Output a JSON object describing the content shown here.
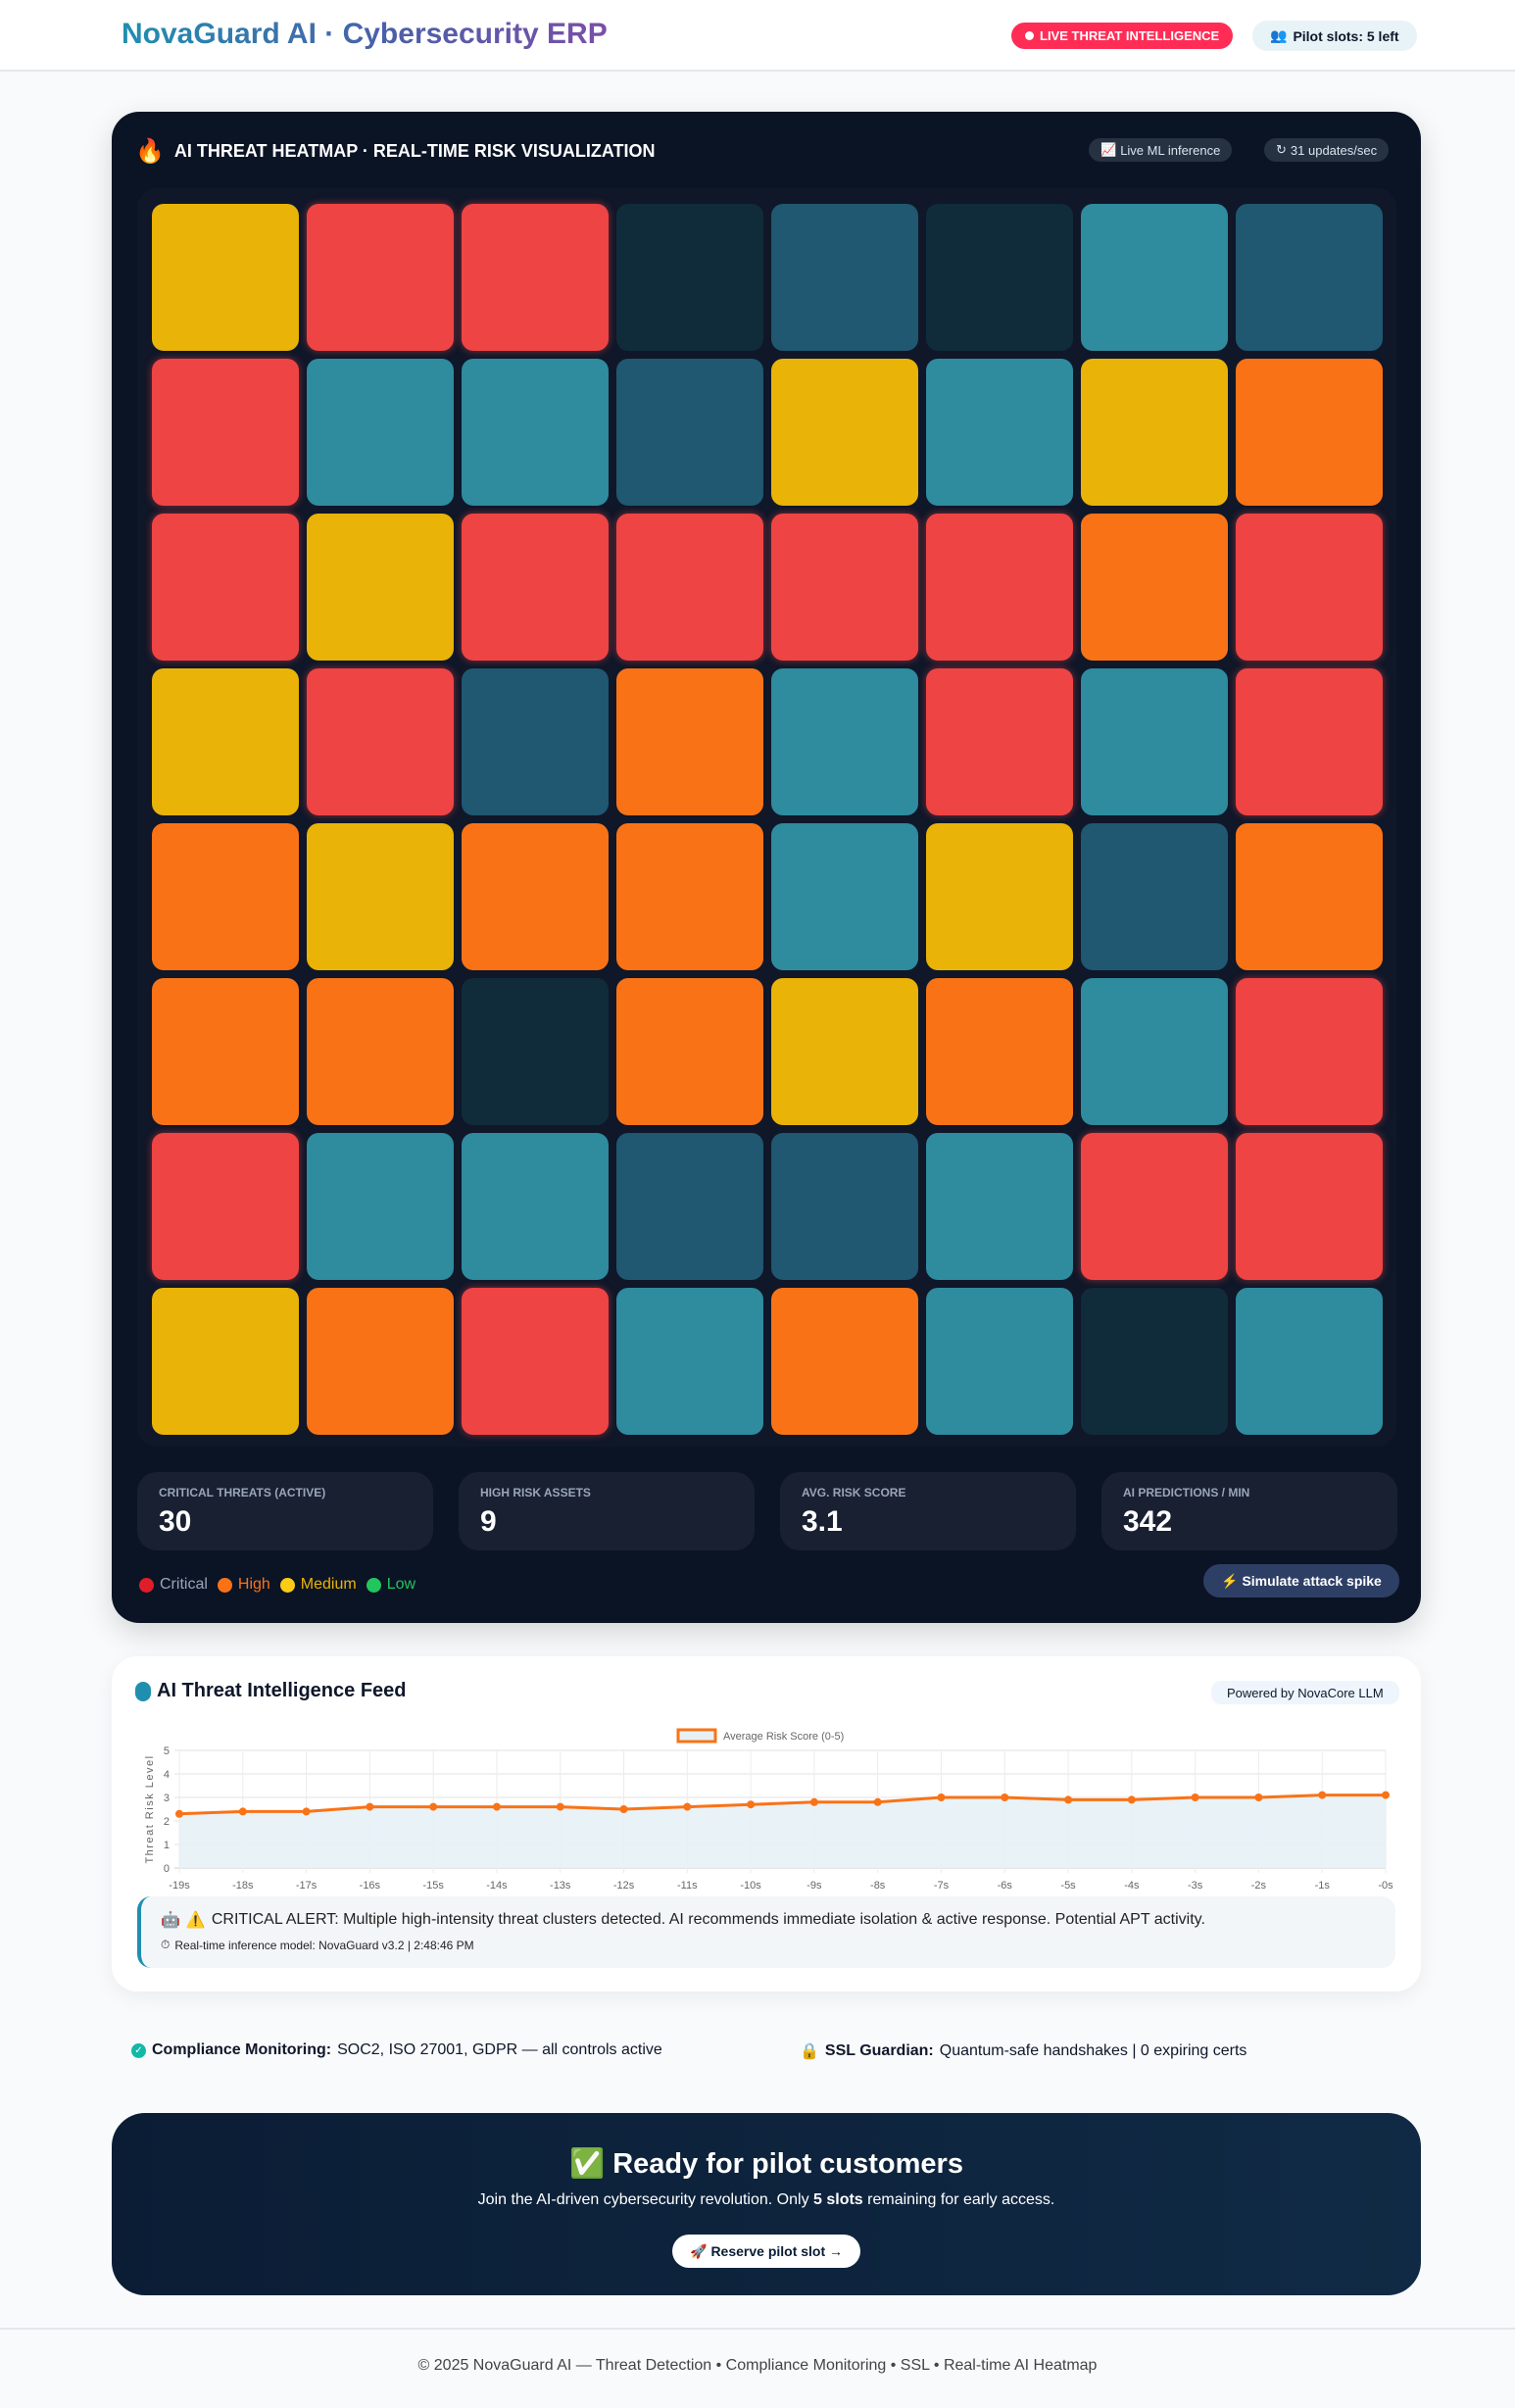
{
  "header": {
    "brand": "NovaGuard AI · Cybersecurity ERP",
    "live_badge": "LIVE THREAT INTELLIGENCE",
    "slots_badge": "Pilot slots: 5 left"
  },
  "heatmap": {
    "title": "AI THREAT HEATMAP · REAL-TIME RISK VISUALIZATION",
    "chip_inference": "Live ML inference",
    "chip_updates": "31 updates/sec",
    "colors": {
      "critical": "#ef4444",
      "high": "#f97316",
      "medium": "#e9b308",
      "low_a": "#2f8b9e",
      "low_b": "#1f5870",
      "low_c": "#102c3a"
    },
    "cells": [
      [
        "medium",
        "critical",
        "critical",
        "low_c",
        "low_b",
        "low_c",
        "low_a",
        "low_b"
      ],
      [
        "critical",
        "low_a",
        "low_a",
        "low_b",
        "medium",
        "low_a",
        "medium",
        "high"
      ],
      [
        "critical",
        "medium",
        "critical",
        "critical",
        "critical",
        "critical",
        "high",
        "critical"
      ],
      [
        "medium",
        "critical",
        "low_b",
        "high",
        "low_a",
        "critical",
        "low_a",
        "critical"
      ],
      [
        "high",
        "medium",
        "high",
        "high",
        "low_a",
        "medium",
        "low_b",
        "high"
      ],
      [
        "high",
        "high",
        "low_c",
        "high",
        "medium",
        "high",
        "low_a",
        "critical"
      ],
      [
        "critical",
        "low_a",
        "low_a",
        "low_b",
        "low_b",
        "low_a",
        "critical",
        "critical"
      ],
      [
        "medium",
        "high",
        "critical",
        "low_a",
        "high",
        "low_a",
        "low_c",
        "low_a"
      ]
    ]
  },
  "stats": [
    {
      "label": "CRITICAL THREATS (ACTIVE)",
      "value": "30"
    },
    {
      "label": "HIGH RISK ASSETS",
      "value": "9"
    },
    {
      "label": "AVG. RISK SCORE",
      "value": "3.1"
    },
    {
      "label": "AI PREDICTIONS / MIN",
      "value": "342"
    }
  ],
  "legend": [
    {
      "label": "Critical",
      "dot": "#e11d2a",
      "text": "#9aa6b8"
    },
    {
      "label": "High",
      "dot": "#f97316",
      "text": "#f97316"
    },
    {
      "label": "Medium",
      "dot": "#facc15",
      "text": "#eab308"
    },
    {
      "label": "Low",
      "dot": "#22c55e",
      "text": "#22c55e"
    }
  ],
  "simulate_label": "Simulate attack spike",
  "feed": {
    "title": "AI Threat Intelligence Feed",
    "powered": "Powered by NovaCore LLM",
    "alert": "CRITICAL ALERT: Multiple high-intensity threat clusters detected. AI recommends immediate isolation & active response. Potential APT activity.",
    "model": "Real-time inference model: NovaGuard v3.2 | 2:48:46 PM"
  },
  "chart_data": {
    "type": "line",
    "x": [
      "-19s",
      "-18s",
      "-17s",
      "-16s",
      "-15s",
      "-14s",
      "-13s",
      "-12s",
      "-11s",
      "-10s",
      "-9s",
      "-8s",
      "-7s",
      "-6s",
      "-5s",
      "-4s",
      "-3s",
      "-2s",
      "-1s",
      "-0s"
    ],
    "series": [
      {
        "name": "Average Risk Score (0-5)",
        "values": [
          2.3,
          2.4,
          2.4,
          2.6,
          2.6,
          2.6,
          2.6,
          2.5,
          2.6,
          2.7,
          2.8,
          2.8,
          3.0,
          3.0,
          2.9,
          2.9,
          3.0,
          3.0,
          3.1,
          3.1
        ],
        "color": "#f97316",
        "fill": "#e6f1f6"
      }
    ],
    "ylabel": "Threat Risk Level",
    "ylim": [
      0,
      5
    ],
    "yticks": [
      "0",
      "1",
      "2",
      "3",
      "4",
      "5"
    ],
    "grid": true,
    "legend": "top"
  },
  "compliance": {
    "label": "Compliance Monitoring:",
    "text": "SOC2, ISO 27001, GDPR — all controls active"
  },
  "ssl": {
    "label": "SSL Guardian:",
    "text": "Quantum-safe handshakes | 0 expiring certs"
  },
  "cta": {
    "title": "Ready for pilot customers",
    "sub_a": "Join the AI-driven cybersecurity revolution. Only ",
    "sub_b": "5 slots",
    "sub_c": " remaining for early access.",
    "button": "Reserve pilot slot →"
  },
  "footer": "© 2025 NovaGuard AI — Threat Detection • Compliance Monitoring • SSL • Real-time AI Heatmap"
}
